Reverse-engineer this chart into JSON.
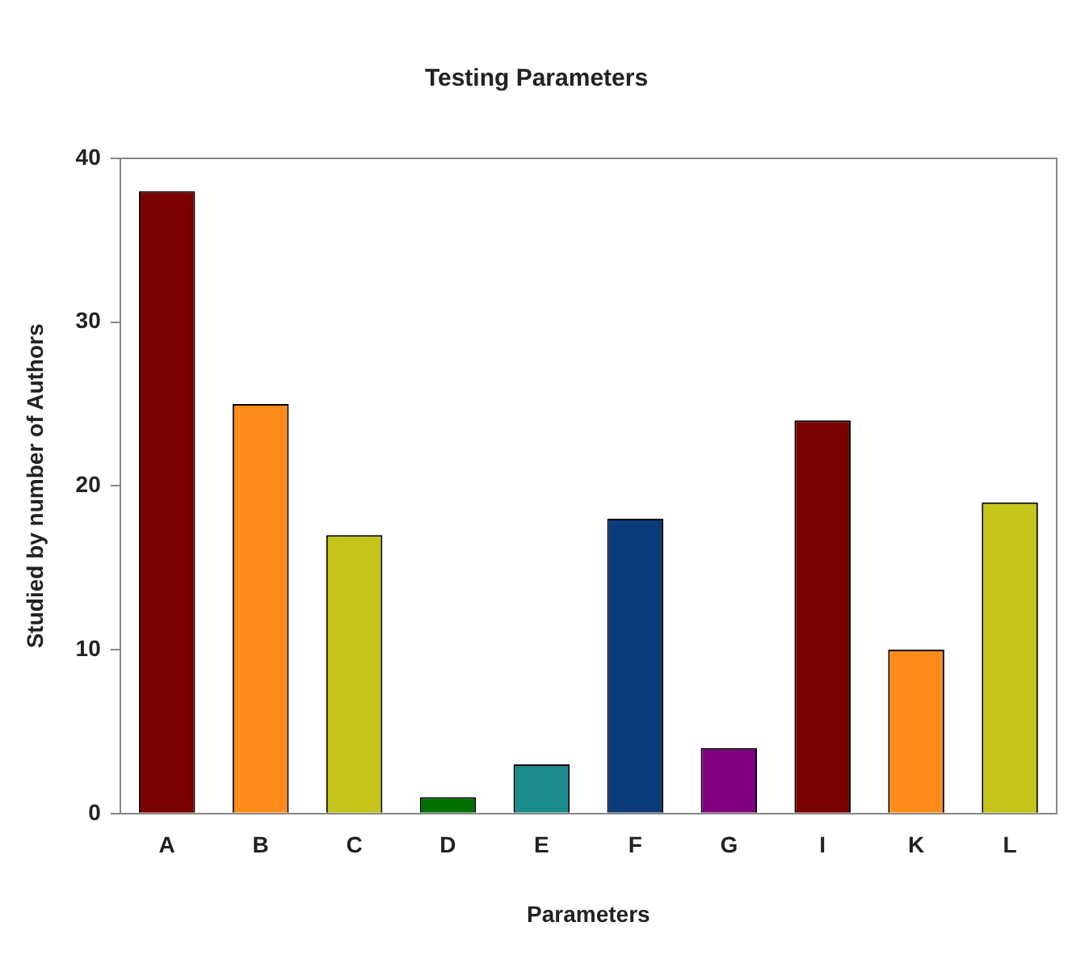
{
  "chart_data": {
    "type": "bar",
    "title": "Testing Parameters",
    "xlabel": "Parameters",
    "ylabel": "Studied by number of Authors",
    "categories": [
      "A",
      "B",
      "C",
      "D",
      "E",
      "F",
      "G",
      "I",
      "K",
      "L"
    ],
    "values": [
      38,
      25,
      17,
      1,
      3,
      18,
      4,
      24,
      10,
      19
    ],
    "colors": [
      "#7a0000",
      "#ff8c1a",
      "#c4c41a",
      "#007000",
      "#1a8a8a",
      "#0a3c7a",
      "#800080",
      "#7a0000",
      "#ff8c1a",
      "#c4c41a"
    ],
    "ylim": [
      0,
      40
    ],
    "yticks": [
      0,
      10,
      20,
      30,
      40
    ],
    "grid": false,
    "legend": false
  }
}
